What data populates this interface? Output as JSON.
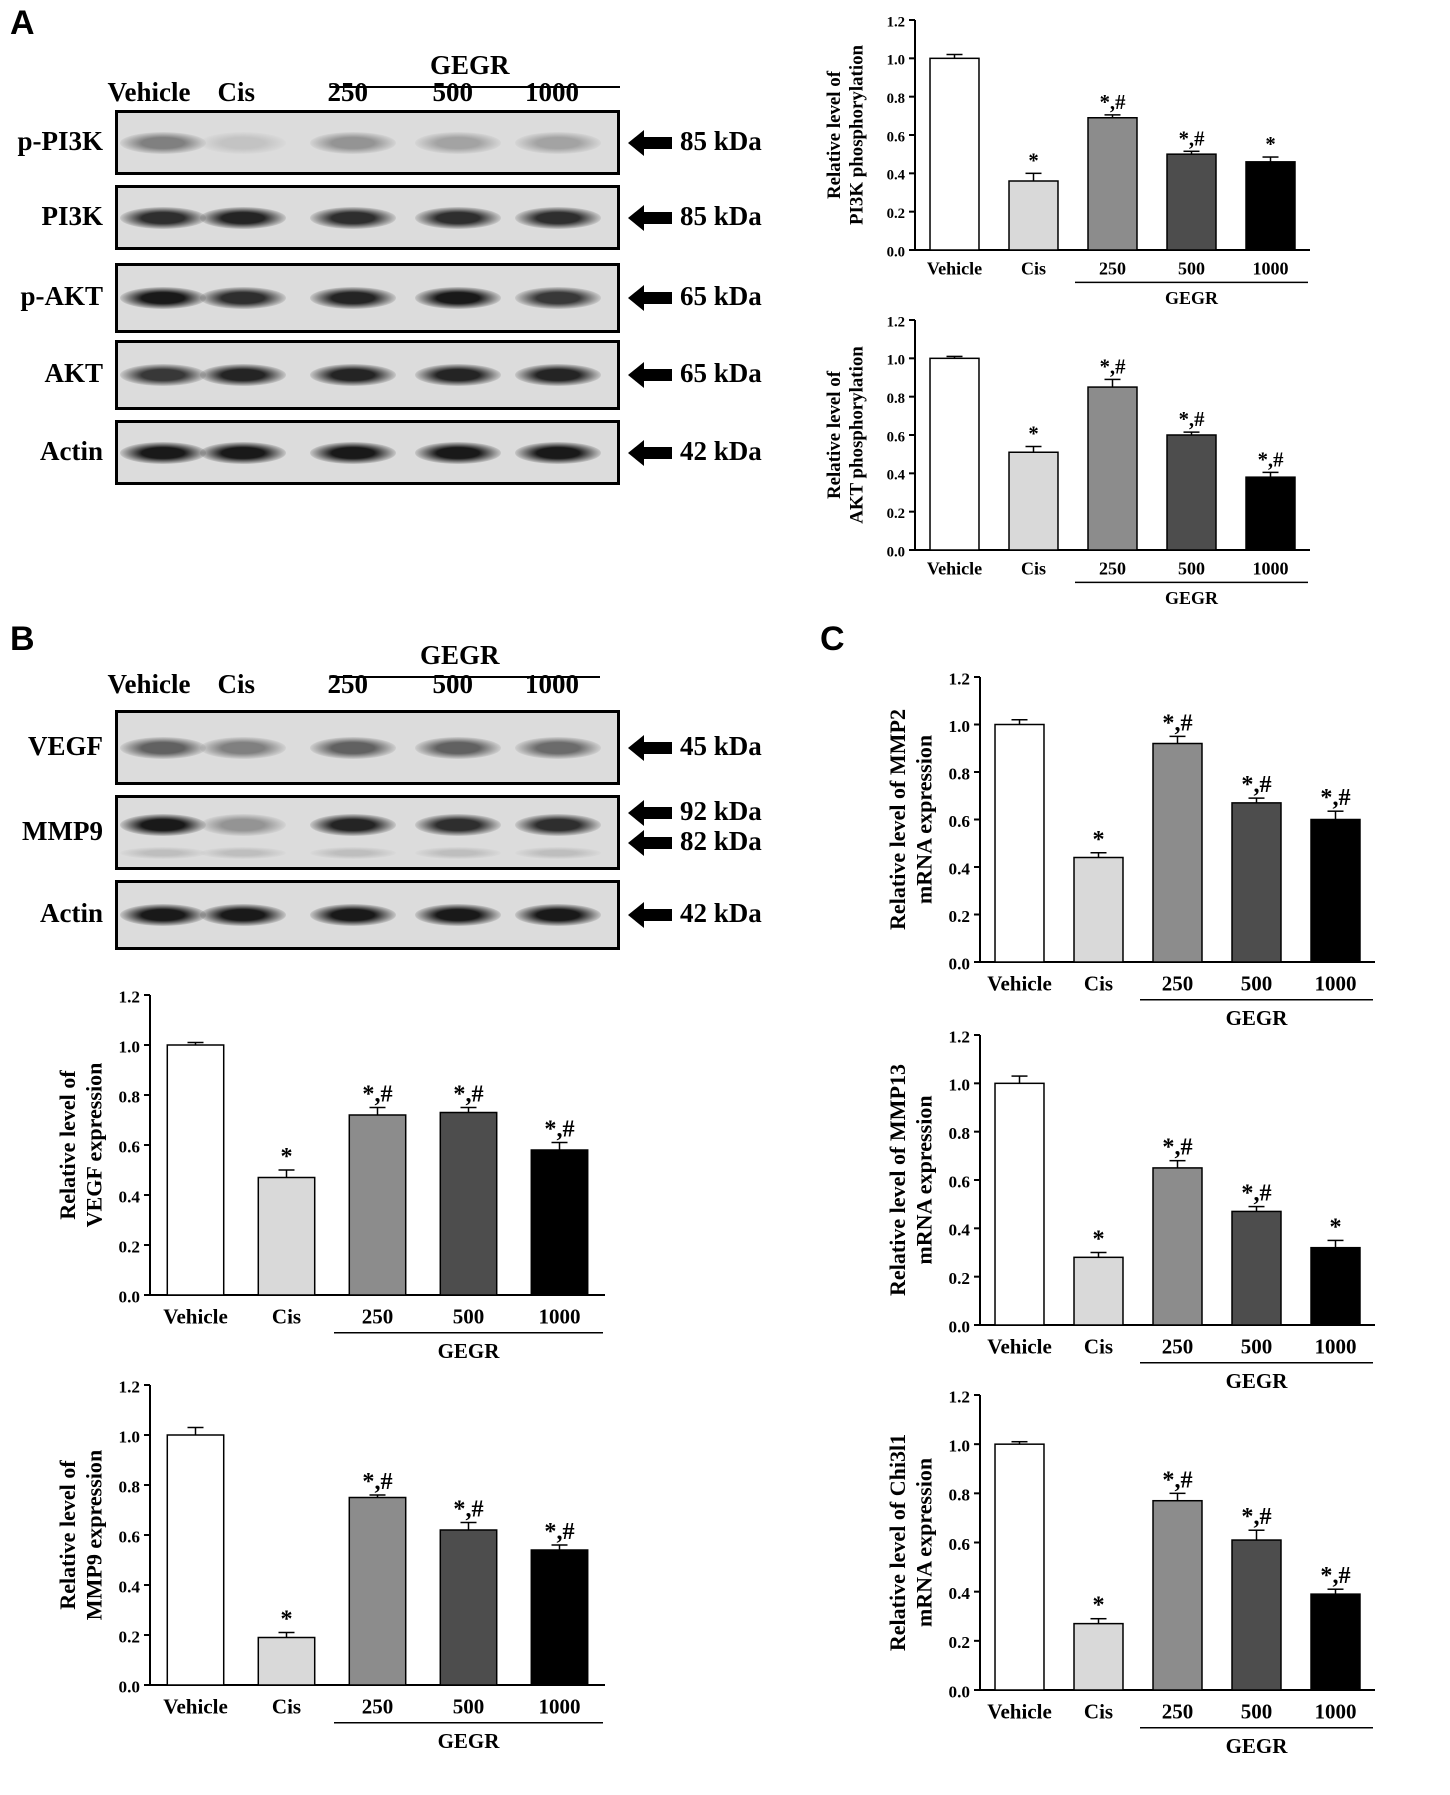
{
  "panels": {
    "A": "A",
    "B": "B",
    "C": "C"
  },
  "blots": [
    {
      "id": "blot-a",
      "lanes": [
        "Vehicle",
        "Cis",
        "250",
        "500",
        "1000"
      ],
      "group_label": "GEGR",
      "rows": [
        {
          "label": "p-PI3K",
          "size": "85 kDa",
          "bands": [
            0.45,
            0.12,
            0.35,
            0.28,
            0.28
          ]
        },
        {
          "label": "PI3K",
          "size": "85 kDa",
          "bands": [
            0.85,
            0.9,
            0.85,
            0.85,
            0.85
          ]
        },
        {
          "label": "p-AKT",
          "size": "65 kDa",
          "bands": [
            0.95,
            0.85,
            0.9,
            0.95,
            0.8
          ]
        },
        {
          "label": "AKT",
          "size": "65 kDa",
          "bands": [
            0.8,
            0.9,
            0.9,
            0.9,
            0.9
          ]
        },
        {
          "label": "Actin",
          "size": "42 kDa",
          "bands": [
            0.95,
            0.95,
            0.95,
            0.95,
            0.95
          ]
        }
      ]
    },
    {
      "id": "blot-b",
      "lanes": [
        "Vehicle",
        "Cis",
        "250",
        "500",
        "1000"
      ],
      "group_label": "GEGR",
      "rows": [
        {
          "label": "VEGF",
          "size": "45 kDa",
          "bands": [
            0.6,
            0.45,
            0.6,
            0.6,
            0.55
          ]
        },
        {
          "label": "MMP9",
          "size": "92 kDa",
          "size2": "82 kDa",
          "bands": [
            0.95,
            0.35,
            0.9,
            0.85,
            0.85
          ]
        },
        {
          "label": "Actin",
          "size": "42 kDa",
          "bands": [
            0.95,
            0.95,
            0.95,
            0.95,
            0.95
          ]
        }
      ]
    }
  ],
  "chart_data": [
    {
      "id": "chart-pi3k",
      "type": "bar",
      "categories": [
        "Vehicle",
        "Cis",
        "250",
        "500",
        "1000"
      ],
      "group_label": "GEGR",
      "ylabel": [
        "Relative level of",
        "PI3K phosphorylation"
      ],
      "ylim": [
        0,
        1.2
      ],
      "yticks": [
        "0.0",
        "0.2",
        "0.4",
        "0.6",
        "0.8",
        "1.0",
        "1.2"
      ],
      "values": [
        1.0,
        0.36,
        0.69,
        0.5,
        0.46
      ],
      "errors": [
        0.02,
        0.04,
        0.015,
        0.015,
        0.025
      ],
      "marks": [
        "",
        "*",
        "*,#",
        "*,#",
        "*"
      ],
      "colors": [
        "#ffffff",
        "#d9d9d9",
        "#8c8c8c",
        "#4d4d4d",
        "#000000"
      ]
    },
    {
      "id": "chart-akt",
      "type": "bar",
      "categories": [
        "Vehicle",
        "Cis",
        "250",
        "500",
        "1000"
      ],
      "group_label": "GEGR",
      "ylabel": [
        "Relative level of",
        "AKT phosphorylation"
      ],
      "ylim": [
        0,
        1.2
      ],
      "yticks": [
        "0.0",
        "0.2",
        "0.4",
        "0.6",
        "0.8",
        "1.0",
        "1.2"
      ],
      "values": [
        1.0,
        0.51,
        0.85,
        0.6,
        0.38
      ],
      "errors": [
        0.01,
        0.03,
        0.04,
        0.015,
        0.025
      ],
      "marks": [
        "",
        "*",
        "*,#",
        "*,#",
        "*,#"
      ],
      "colors": [
        "#ffffff",
        "#d9d9d9",
        "#8c8c8c",
        "#4d4d4d",
        "#000000"
      ]
    },
    {
      "id": "chart-vegf",
      "type": "bar",
      "categories": [
        "Vehicle",
        "Cis",
        "250",
        "500",
        "1000"
      ],
      "group_label": "GEGR",
      "ylabel": [
        "Relative level of",
        "VEGF expression"
      ],
      "ylim": [
        0,
        1.2
      ],
      "yticks": [
        "0.0",
        "0.2",
        "0.4",
        "0.6",
        "0.8",
        "1.0",
        "1.2"
      ],
      "values": [
        1.0,
        0.47,
        0.72,
        0.73,
        0.58
      ],
      "errors": [
        0.01,
        0.03,
        0.03,
        0.02,
        0.03
      ],
      "marks": [
        "",
        "*",
        "*,#",
        "*,#",
        "*,#"
      ],
      "colors": [
        "#ffffff",
        "#d9d9d9",
        "#8c8c8c",
        "#4d4d4d",
        "#000000"
      ]
    },
    {
      "id": "chart-mmp9",
      "type": "bar",
      "categories": [
        "Vehicle",
        "Cis",
        "250",
        "500",
        "1000"
      ],
      "group_label": "GEGR",
      "ylabel": [
        "Relative level of",
        "MMP9 expression"
      ],
      "ylim": [
        0,
        1.2
      ],
      "yticks": [
        "0.0",
        "0.2",
        "0.4",
        "0.6",
        "0.8",
        "1.0",
        "1.2"
      ],
      "values": [
        1.0,
        0.19,
        0.75,
        0.62,
        0.54
      ],
      "errors": [
        0.03,
        0.02,
        0.01,
        0.03,
        0.02
      ],
      "marks": [
        "",
        "*",
        "*,#",
        "*,#",
        "*,#"
      ],
      "colors": [
        "#ffffff",
        "#d9d9d9",
        "#8c8c8c",
        "#4d4d4d",
        "#000000"
      ]
    },
    {
      "id": "chart-mmp2",
      "type": "bar",
      "categories": [
        "Vehicle",
        "Cis",
        "250",
        "500",
        "1000"
      ],
      "group_label": "GEGR",
      "ylabel": [
        "Relative level of MMP2",
        "mRNA expression"
      ],
      "ylim": [
        0,
        1.2
      ],
      "yticks": [
        "0.0",
        "0.2",
        "0.4",
        "0.6",
        "0.8",
        "1.0",
        "1.2"
      ],
      "values": [
        1.0,
        0.44,
        0.92,
        0.67,
        0.6
      ],
      "errors": [
        0.02,
        0.02,
        0.03,
        0.02,
        0.035
      ],
      "marks": [
        "",
        "*",
        "*,#",
        "*,#",
        "*,#"
      ],
      "colors": [
        "#ffffff",
        "#d9d9d9",
        "#8c8c8c",
        "#4d4d4d",
        "#000000"
      ]
    },
    {
      "id": "chart-mmp13",
      "type": "bar",
      "categories": [
        "Vehicle",
        "Cis",
        "250",
        "500",
        "1000"
      ],
      "group_label": "GEGR",
      "ylabel": [
        "Relative level of MMP13",
        "mRNA expression"
      ],
      "ylim": [
        0,
        1.2
      ],
      "yticks": [
        "0.0",
        "0.2",
        "0.4",
        "0.6",
        "0.8",
        "1.0",
        "1.2"
      ],
      "values": [
        1.0,
        0.28,
        0.65,
        0.47,
        0.32
      ],
      "errors": [
        0.03,
        0.02,
        0.03,
        0.02,
        0.03
      ],
      "marks": [
        "",
        "*",
        "*,#",
        "*,#",
        "*"
      ],
      "colors": [
        "#ffffff",
        "#d9d9d9",
        "#8c8c8c",
        "#4d4d4d",
        "#000000"
      ]
    },
    {
      "id": "chart-chi3l1",
      "type": "bar",
      "categories": [
        "Vehicle",
        "Cis",
        "250",
        "500",
        "1000"
      ],
      "group_label": "GEGR",
      "ylabel": [
        "Relative level of Chi3l1",
        "mRNA expression"
      ],
      "ylim": [
        0,
        1.2
      ],
      "yticks": [
        "0.0",
        "0.2",
        "0.4",
        "0.6",
        "0.8",
        "1.0",
        "1.2"
      ],
      "values": [
        1.0,
        0.27,
        0.77,
        0.61,
        0.39
      ],
      "errors": [
        0.01,
        0.02,
        0.03,
        0.04,
        0.02
      ],
      "marks": [
        "",
        "*",
        "*,#",
        "*,#",
        "*,#"
      ],
      "colors": [
        "#ffffff",
        "#d9d9d9",
        "#8c8c8c",
        "#4d4d4d",
        "#000000"
      ]
    }
  ]
}
